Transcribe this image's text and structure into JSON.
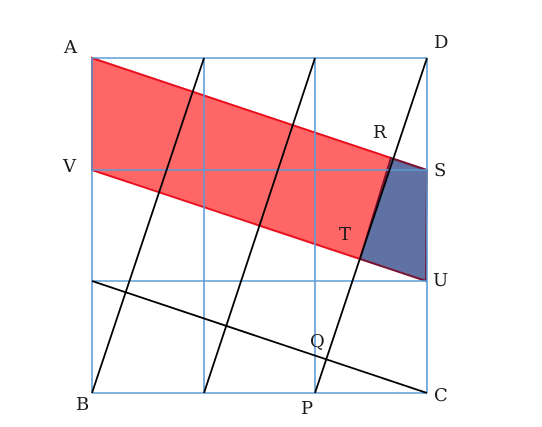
{
  "labels": {
    "A": "A",
    "B": "B",
    "C": "C",
    "D": "D",
    "V": "V",
    "S": "S",
    "U": "U",
    "R": "R",
    "T": "T",
    "Q": "Q",
    "P": "P"
  },
  "colors": {
    "grid": "#5b9bd5",
    "red_fill": "#ff6666",
    "red_edge": "#e8101e",
    "blue_fill": "#5f72a3",
    "blue_edge": "#7a1230",
    "black": "#000000"
  }
}
